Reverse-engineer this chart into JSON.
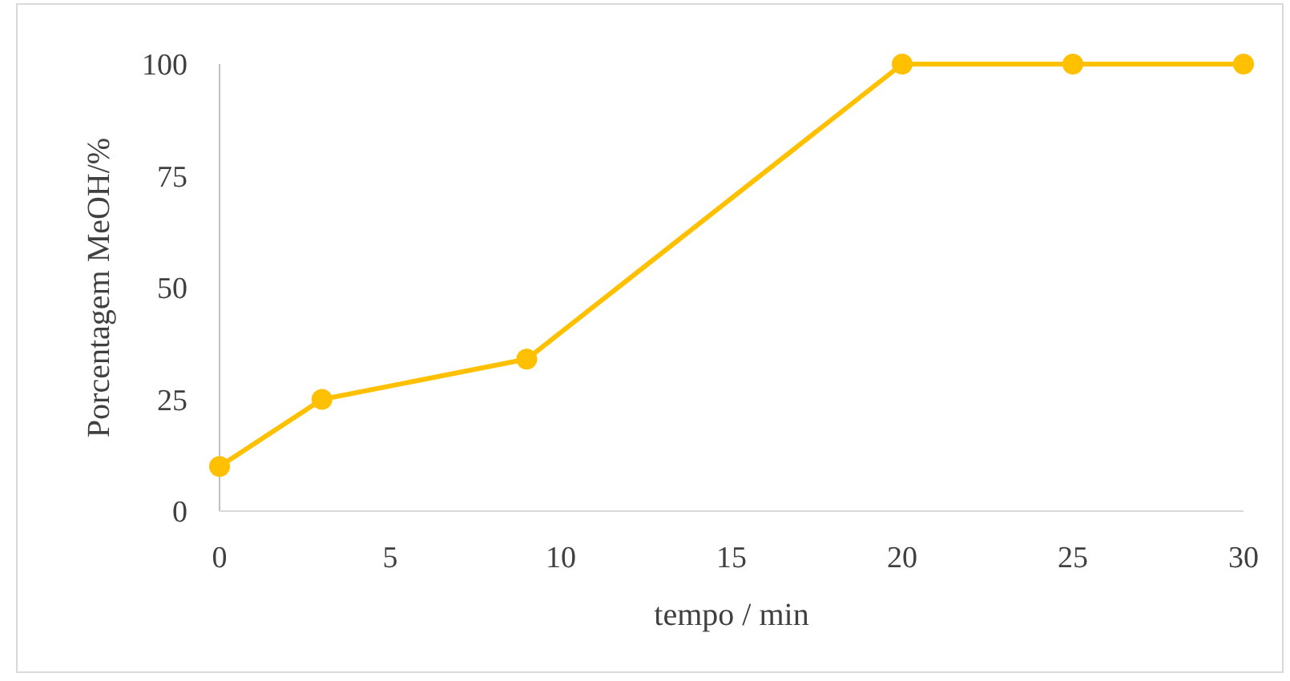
{
  "chart_data": {
    "type": "line",
    "xlabel": "tempo / min",
    "ylabel": "Porcentagem MeOH/%",
    "x": [
      0,
      3,
      9,
      20,
      25,
      30
    ],
    "series": [
      {
        "color": "#ffc000",
        "values": [
          10,
          25,
          34,
          100,
          100,
          100
        ]
      }
    ],
    "xlim": [
      0,
      30
    ],
    "xticks": [
      0,
      5,
      10,
      15,
      20,
      25,
      30
    ],
    "ylim": [
      0,
      100
    ],
    "yticks": [
      0,
      25,
      50,
      75,
      100
    ],
    "grid": false,
    "marker": "circle",
    "line_style": "solid"
  }
}
